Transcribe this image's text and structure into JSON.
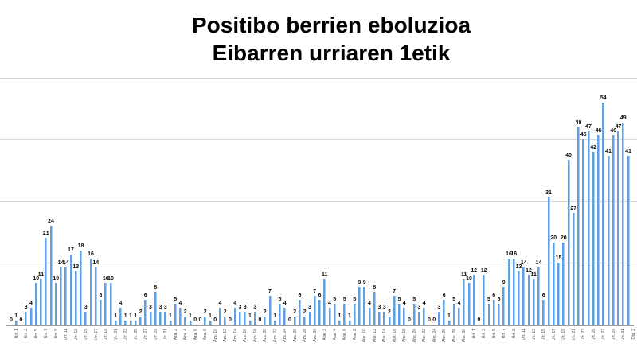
{
  "title": {
    "line1": "Positibo berrien eboluzioa",
    "line2": "Eibarren urriaren 1etik"
  },
  "chart_data": {
    "type": "bar",
    "title": "Positibo berrien eboluzioa Eibarren urriaren 1etik",
    "xlabel": "",
    "ylabel": "",
    "ylim": [
      0,
      60.5
    ],
    "gridline_step": 15,
    "grid": true,
    "legend": "none",
    "bar_color": "#61a0e1",
    "grid_color": "#d8d8d8",
    "axis_color": "#9b9b9b",
    "label_every": 2,
    "categories": [
      "Urr. 1",
      "Urr. 2",
      "Urr. 3",
      "Urr. 4",
      "Urr. 5",
      "Urr. 6",
      "Urr. 7",
      "Urr. 8",
      "Urr. 9",
      "Urr. 10",
      "Urr. 11",
      "Urr. 12",
      "Urr. 13",
      "Urr. 14",
      "Urr. 15",
      "Urr. 16",
      "Urr. 17",
      "Urr. 18",
      "Urr. 19",
      "Urr. 20",
      "Urr. 21",
      "Urr. 22",
      "Urr. 23",
      "Urr. 24",
      "Urr. 25",
      "Urr. 26",
      "Urr. 27",
      "Urr. 28",
      "Urr. 29",
      "Urr. 30",
      "Urr. 31",
      "Aza. 1",
      "Aza. 2",
      "Aza. 3",
      "Aza. 4",
      "Aza. 5",
      "Aza. 6",
      "Aza. 7",
      "Aza. 8",
      "Aza. 9",
      "Aza. 10",
      "Aza. 11",
      "Aza. 12",
      "Aza. 13",
      "Aza. 14",
      "Aza. 15",
      "Aza. 16",
      "Aza. 17",
      "Aza. 18",
      "Aza. 19",
      "Aza. 20",
      "Aza. 21",
      "Aza. 22",
      "Aza. 23",
      "Aza. 24",
      "Aza. 25",
      "Aza. 26",
      "Aza. 27",
      "Aza. 28",
      "Aza. 29",
      "Aza. 30",
      "Abe. 1",
      "Abe. 2",
      "Abe. 3",
      "Abe. 4",
      "Abe. 5",
      "Abe. 6",
      "Abe. 7",
      "Abe. 8",
      "Abe. 9",
      "Abe. 10",
      "Abe. 11",
      "Abe. 12",
      "Abe. 13",
      "Abe. 14",
      "Abe. 15",
      "Abe. 16",
      "Abe. 17",
      "Abe. 18",
      "Abe. 19",
      "Abe. 20",
      "Abe. 21",
      "Abe. 22",
      "Abe. 23",
      "Abe. 24",
      "Abe. 25",
      "Abe. 26",
      "Abe. 27",
      "Abe. 28",
      "Abe. 29",
      "Abe. 30",
      "Abe. 31",
      "Urt. 1",
      "Urt. 2",
      "Urt. 3",
      "Urt. 4",
      "Urt. 5",
      "Urt. 6",
      "Urt. 7",
      "Urt. 8",
      "Urt. 9",
      "Urt. 10",
      "Urt. 11",
      "Urt. 12",
      "Urt. 13",
      "Urt. 14",
      "Urt. 15",
      "Urt. 16",
      "Urt. 17",
      "Urt. 18",
      "Urt. 19",
      "Urt. 20",
      "Urt. 21",
      "Urt. 22",
      "Urt. 23",
      "Urt. 24",
      "Urt. 25",
      "Urt. 26",
      "Urt. 27",
      "Urt. 28",
      "Urt. 29",
      "Urt. 30",
      "Urt. 31",
      "Ots. 1",
      "Ots. 2"
    ],
    "values": [
      0,
      1,
      0,
      3,
      4,
      10,
      11,
      21,
      24,
      10,
      14,
      14,
      17,
      13,
      18,
      3,
      16,
      14,
      6,
      10,
      10,
      1,
      4,
      1,
      1,
      1,
      2,
      6,
      3,
      8,
      3,
      3,
      1,
      5,
      4,
      2,
      1,
      0,
      0,
      2,
      1,
      0,
      4,
      2,
      0,
      4,
      3,
      3,
      1,
      3,
      0,
      2,
      7,
      1,
      5,
      4,
      0,
      2,
      6,
      2,
      3,
      7,
      6,
      11,
      4,
      5,
      1,
      5,
      1,
      5,
      9,
      9,
      4,
      8,
      3,
      3,
      2,
      7,
      5,
      4,
      0,
      5,
      3,
      4,
      0,
      0,
      3,
      6,
      1,
      5,
      4,
      11,
      10,
      12,
      0,
      12,
      5,
      6,
      5,
      9,
      16,
      16,
      13,
      14,
      12,
      11,
      14,
      6,
      31,
      20,
      15,
      20,
      40,
      27,
      48,
      45,
      47,
      42,
      46,
      54,
      41,
      46,
      47,
      49,
      41
    ]
  }
}
